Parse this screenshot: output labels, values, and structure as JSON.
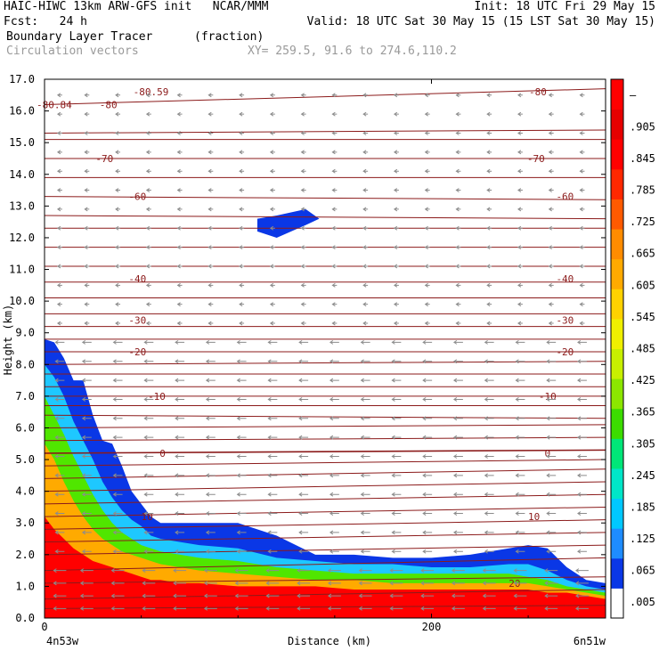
{
  "header": {
    "line1_left": "HAIC-HIWC 13km ARW-GFS init   NCAR/MMM",
    "line1_right": "Init: 18 UTC Fri 29 May 15",
    "line2_left": "Fcst:   24 h",
    "line2_right": "Valid: 18 UTC Sat 30 May 15 (15 LST Sat 30 May 15)",
    "field_name": "Boundary Layer Tracer",
    "field_unit": "(fraction)",
    "overlay_name": "Circulation vectors",
    "xy_range": "XY= 259.5, 91.6 to 274.6,110.2"
  },
  "colors": {
    "background": "#ffffff",
    "frame": "#000000",
    "contour": "#8b1a1a",
    "vector": "#8c8c8c",
    "header_grey": "#9a9a9a"
  },
  "chart_data": {
    "type": "heatmap",
    "xlabel": "Distance (km)",
    "ylabel": "Height (km)",
    "xlim": [
      0,
      290
    ],
    "ylim": [
      0,
      17
    ],
    "x_ticks": [
      0,
      200
    ],
    "y_ticks": [
      "0.0",
      "1.0",
      "2.0",
      "3.0",
      "4.0",
      "5.0",
      "6.0",
      "7.0",
      "8.0",
      "9.0",
      "10.0",
      "11.0",
      "12.0",
      "13.0",
      "14.0",
      "15.0",
      "16.0",
      "17.0"
    ],
    "x_start_label": "4n53w",
    "x_end_label": "6n51w",
    "colorbar": {
      "labels": [
        ".005",
        ".065",
        ".125",
        ".185",
        ".245",
        ".305",
        ".365",
        ".425",
        ".485",
        ".545",
        ".605",
        ".665",
        ".725",
        ".785",
        ".845",
        ".905",
        "–"
      ],
      "colors": [
        "#ffffff",
        "#0a37e6",
        "#1e8cff",
        "#00c8ff",
        "#00e6c8",
        "#00e678",
        "#3cdc00",
        "#8ce600",
        "#c8f000",
        "#f0f000",
        "#ffd200",
        "#ffaa00",
        "#ff8c00",
        "#ff5a00",
        "#ff2800",
        "#ff0000",
        "#e60000",
        "#ff0000"
      ]
    },
    "temperature_contours": {
      "unit": "°C",
      "labels": [
        {
          "value": "-80.59",
          "x": 55,
          "y": 16.6
        },
        {
          "value": "-80.84",
          "x": 5,
          "y": 16.2
        },
        {
          "value": "-80",
          "x": 33,
          "y": 16.2
        },
        {
          "value": "-80",
          "x": 255,
          "y": 16.6
        },
        {
          "value": "-70",
          "x": 31,
          "y": 14.5
        },
        {
          "value": "-70",
          "x": 254,
          "y": 14.5
        },
        {
          "value": "-60",
          "x": 48,
          "y": 13.3
        },
        {
          "value": "-60",
          "x": 269,
          "y": 13.3
        },
        {
          "value": "-40",
          "x": 48,
          "y": 10.7
        },
        {
          "value": "-40",
          "x": 269,
          "y": 10.7
        },
        {
          "value": "-30",
          "x": 48,
          "y": 9.4
        },
        {
          "value": "-30",
          "x": 269,
          "y": 9.4
        },
        {
          "value": "-20",
          "x": 48,
          "y": 8.4
        },
        {
          "value": "-20",
          "x": 269,
          "y": 8.4
        },
        {
          "value": "-10",
          "x": 58,
          "y": 7.0
        },
        {
          "value": "-10",
          "x": 260,
          "y": 7.0
        },
        {
          "value": "0",
          "x": 61,
          "y": 5.2
        },
        {
          "value": "0",
          "x": 260,
          "y": 5.2
        },
        {
          "value": "10",
          "x": 53,
          "y": 3.2
        },
        {
          "value": "10",
          "x": 253,
          "y": 3.2
        },
        {
          "value": "20",
          "x": 243,
          "y": 1.1
        }
      ],
      "line_heights_left": [
        0.3,
        0.6,
        1.1,
        1.5,
        2.0,
        2.4,
        2.8,
        3.2,
        3.6,
        4.0,
        4.4,
        4.8,
        5.2,
        5.6,
        6.0,
        6.4,
        6.7,
        7.0,
        7.3,
        7.7,
        8.0,
        8.4,
        8.8,
        9.2,
        9.6,
        10.1,
        10.6,
        11.1,
        11.7,
        12.3,
        12.7,
        13.3,
        13.9,
        14.5,
        15.1,
        15.3,
        16.2
      ],
      "line_heights_right": [
        0.4,
        0.9,
        1.3,
        1.9,
        2.3,
        2.7,
        3.1,
        3.5,
        3.9,
        4.3,
        4.7,
        5.0,
        5.3,
        5.7,
        6.1,
        6.3,
        6.7,
        7.0,
        7.3,
        7.7,
        8.1,
        8.4,
        8.8,
        9.2,
        9.6,
        10.1,
        10.6,
        11.1,
        11.7,
        12.3,
        12.6,
        13.2,
        13.9,
        14.5,
        15.1,
        15.4,
        16.7
      ]
    },
    "tracer_profile": {
      "description_free": true,
      "x": [
        0,
        5,
        10,
        15,
        20,
        25,
        30,
        35,
        40,
        45,
        50,
        55,
        60,
        70,
        80,
        100,
        120,
        140,
        160,
        180,
        200,
        220,
        240,
        250,
        260,
        270,
        280,
        290
      ],
      "top_0p005": [
        8.8,
        8.7,
        8.2,
        7.5,
        7.5,
        6.4,
        5.6,
        5.5,
        4.8,
        4.0,
        3.6,
        3.2,
        3.0,
        3.0,
        3.0,
        3.0,
        2.6,
        2.0,
        2.0,
        1.9,
        1.9,
        2.0,
        2.2,
        2.3,
        2.2,
        1.6,
        1.2,
        1.1
      ],
      "top_0p125": [
        8.0,
        7.6,
        7.0,
        6.2,
        5.6,
        5.0,
        4.3,
        3.8,
        3.4,
        3.1,
        2.9,
        2.6,
        2.5,
        2.4,
        2.3,
        2.2,
        1.9,
        1.8,
        1.7,
        1.7,
        1.6,
        1.6,
        1.7,
        1.7,
        1.5,
        1.2,
        1.0,
        0.9
      ],
      "top_0p305": [
        7.0,
        6.4,
        5.8,
        5.1,
        4.5,
        3.9,
        3.4,
        3.0,
        2.7,
        2.5,
        2.3,
        2.2,
        2.1,
        2.0,
        1.9,
        1.8,
        1.6,
        1.5,
        1.4,
        1.4,
        1.4,
        1.4,
        1.4,
        1.3,
        1.2,
        1.0,
        0.9,
        0.8
      ],
      "top_0p605": [
        5.5,
        5.0,
        4.3,
        3.7,
        3.2,
        2.8,
        2.5,
        2.3,
        2.1,
        2.0,
        1.9,
        1.8,
        1.7,
        1.6,
        1.5,
        1.4,
        1.3,
        1.2,
        1.2,
        1.1,
        1.1,
        1.1,
        1.1,
        1.1,
        1.0,
        0.9,
        0.8,
        0.7
      ],
      "top_0p905": [
        3.2,
        2.8,
        2.5,
        2.2,
        2.0,
        1.8,
        1.7,
        1.6,
        1.5,
        1.4,
        1.3,
        1.2,
        1.2,
        1.1,
        1.1,
        1.0,
        1.0,
        1.0,
        0.9,
        0.9,
        0.9,
        0.9,
        0.9,
        0.9,
        0.8,
        0.8,
        0.7,
        0.6
      ]
    },
    "upper_blob": {
      "x": [
        110,
        120,
        135,
        142,
        135,
        120,
        110
      ],
      "y": [
        12.2,
        12.0,
        12.4,
        12.6,
        12.9,
        12.7,
        12.6
      ]
    }
  }
}
